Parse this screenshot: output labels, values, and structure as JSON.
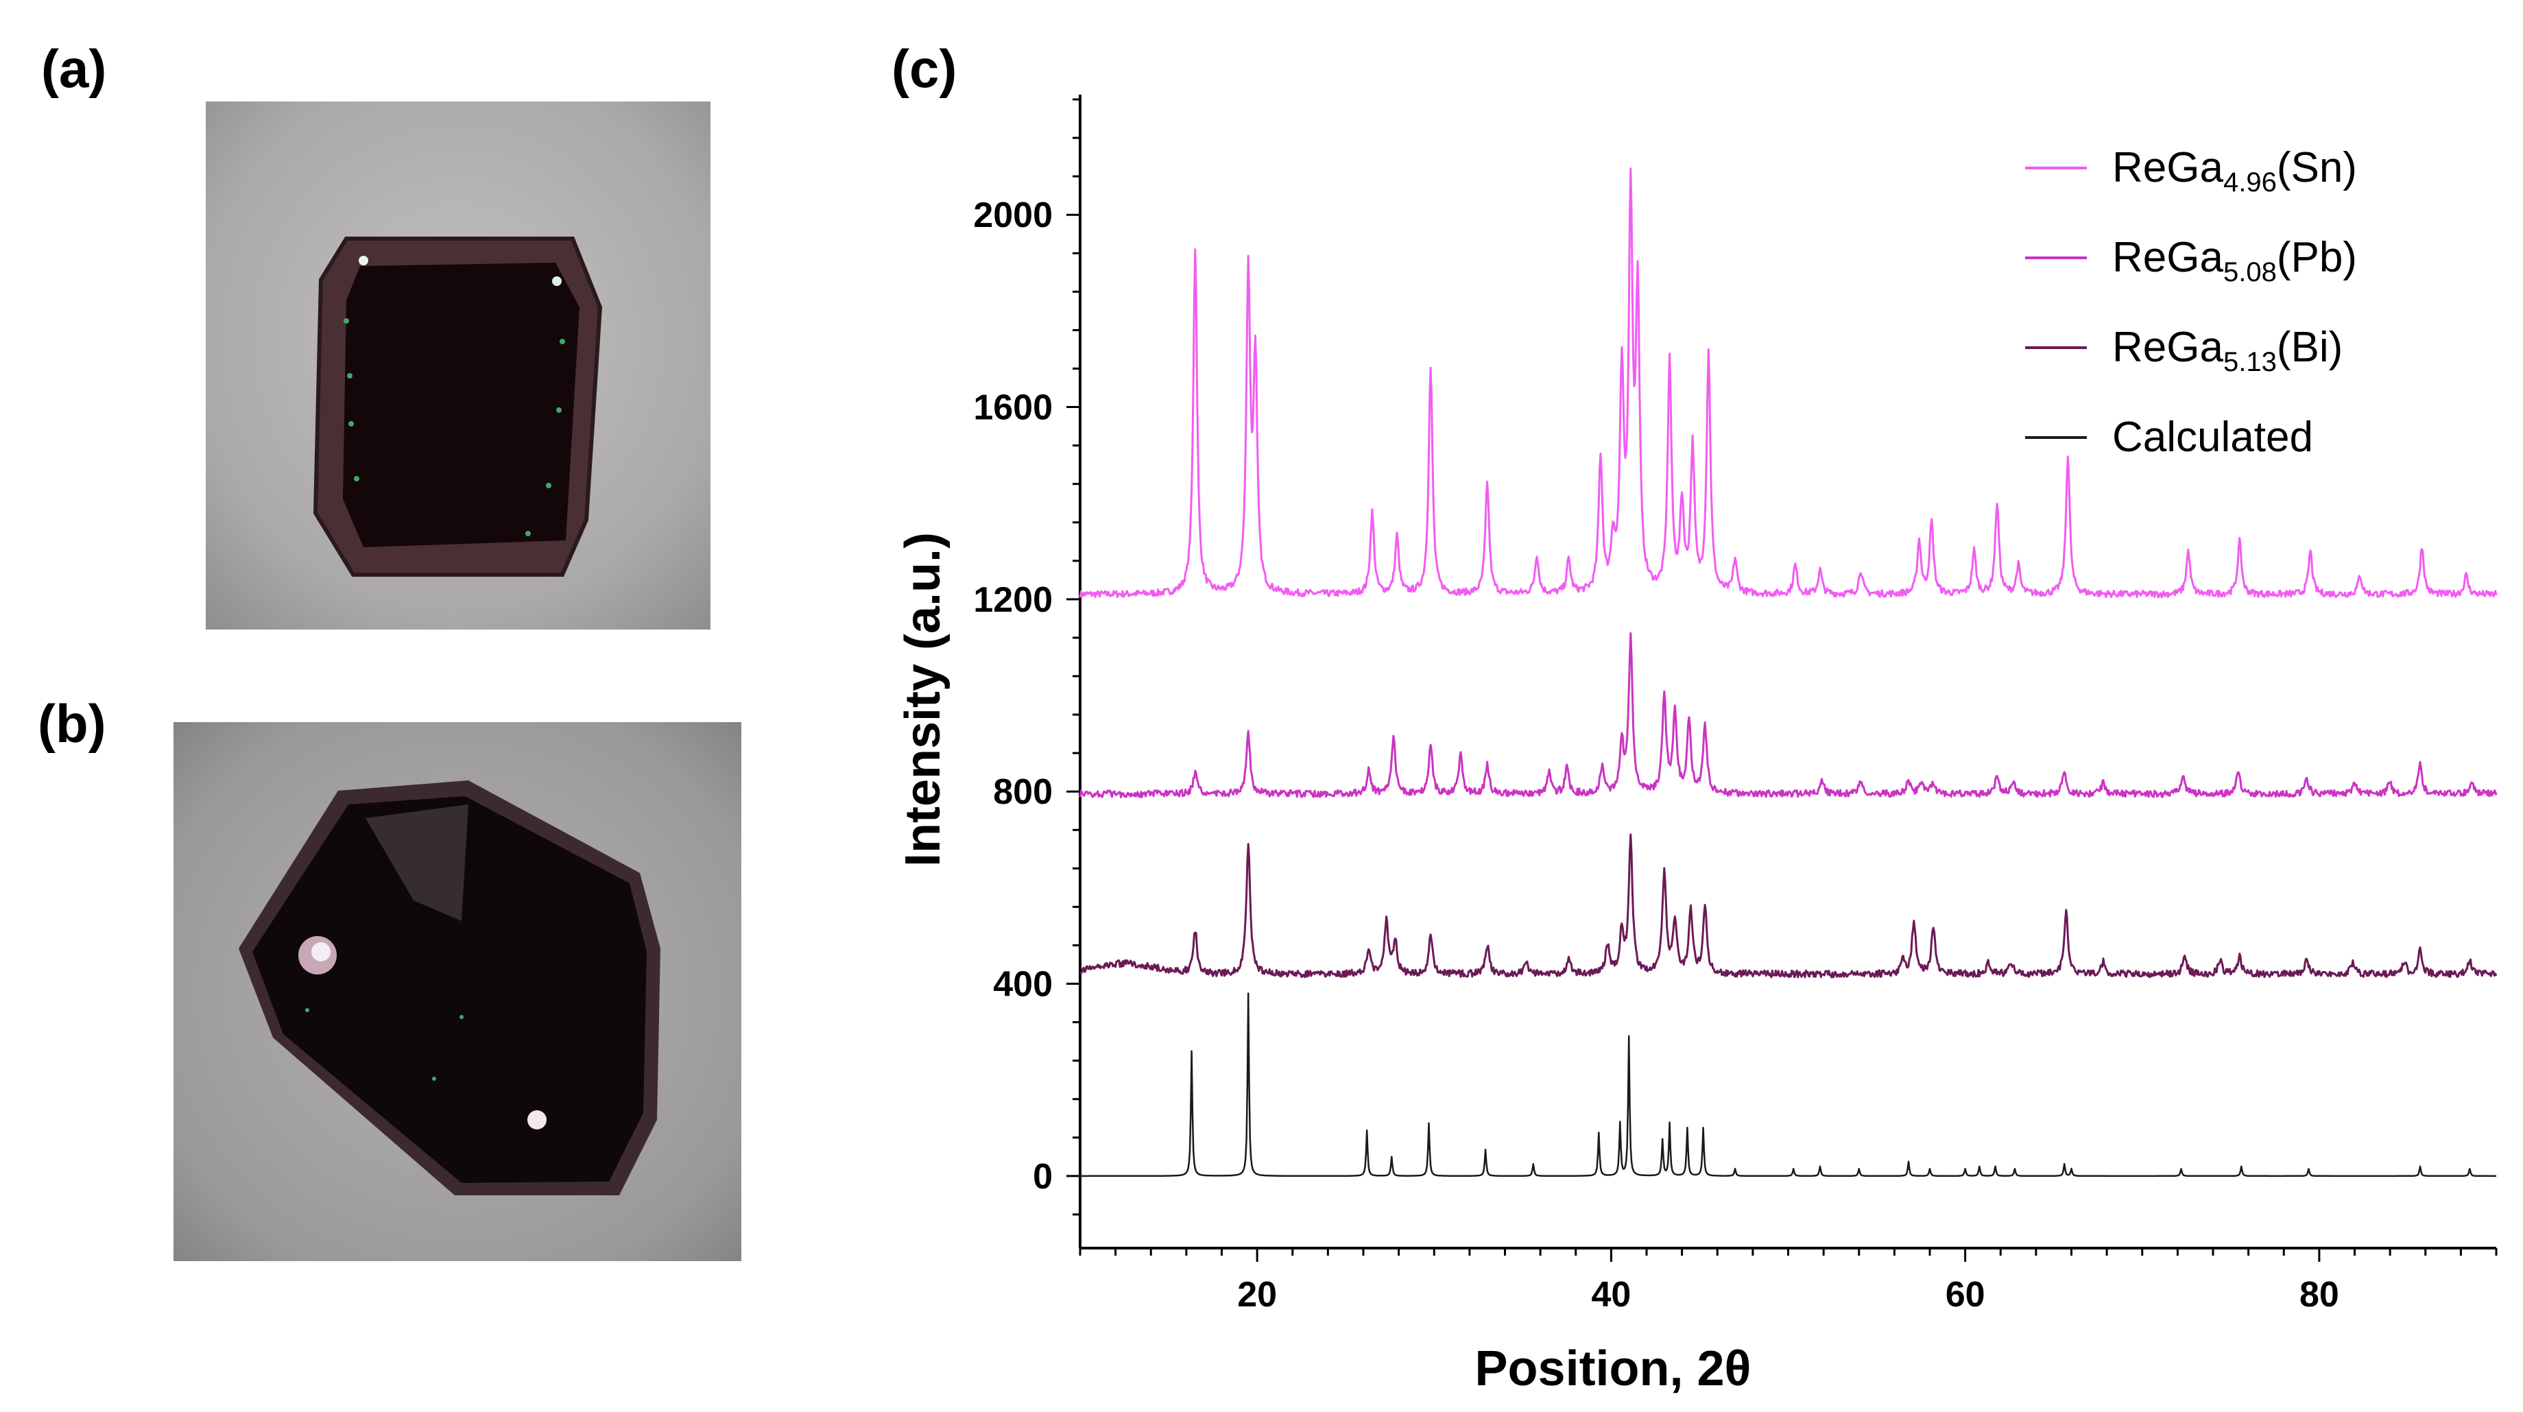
{
  "panels": {
    "a": "(a)",
    "b": "(b)",
    "c": "(c)"
  },
  "photos": {
    "a": {
      "background": "#a9a8a6",
      "crystal": "#1a0a0c",
      "rim": "#4a2f35"
    },
    "b": {
      "background": "#9a9a98",
      "crystal": "#120b0e",
      "rim": "#3c2a30"
    }
  },
  "chart_data": {
    "type": "line",
    "xlabel": "Position, 2θ",
    "ylabel": "Intensity (a.u.)",
    "xlim": [
      10,
      90
    ],
    "ylim": [
      -150,
      2250
    ],
    "xticks": [
      20,
      40,
      60,
      80
    ],
    "yticks": [
      0,
      400,
      800,
      1200,
      1600,
      2000
    ],
    "legend_position": "top-right",
    "series": [
      {
        "name": "ReGa4.96(Sn)",
        "legend_base": "ReGa",
        "legend_sub": "4.96",
        "legend_suffix": "(Sn)",
        "color": "#f25cf2",
        "baseline": 1210,
        "peaks": [
          [
            16.5,
            720
          ],
          [
            19.5,
            660
          ],
          [
            19.9,
            480
          ],
          [
            26.5,
            170
          ],
          [
            27.9,
            120
          ],
          [
            29.8,
            470
          ],
          [
            33.0,
            230
          ],
          [
            35.8,
            80
          ],
          [
            37.6,
            70
          ],
          [
            39.4,
            280
          ],
          [
            40.1,
            100
          ],
          [
            40.6,
            440
          ],
          [
            41.1,
            800
          ],
          [
            41.5,
            600
          ],
          [
            43.3,
            480
          ],
          [
            44.0,
            180
          ],
          [
            44.6,
            300
          ],
          [
            45.5,
            500
          ],
          [
            47.0,
            70
          ],
          [
            50.4,
            60
          ],
          [
            51.8,
            50
          ],
          [
            54.1,
            50
          ],
          [
            57.4,
            110
          ],
          [
            58.1,
            150
          ],
          [
            60.5,
            90
          ],
          [
            61.8,
            190
          ],
          [
            63.0,
            60
          ],
          [
            65.8,
            290
          ],
          [
            72.6,
            90
          ],
          [
            75.5,
            110
          ],
          [
            79.5,
            90
          ],
          [
            82.3,
            40
          ],
          [
            85.8,
            100
          ],
          [
            88.3,
            40
          ]
        ]
      },
      {
        "name": "ReGa5.08(Pb)",
        "legend_base": "ReGa",
        "legend_sub": "5.08",
        "legend_suffix": "(Pb)",
        "color": "#cc33c4",
        "baseline": 795,
        "peaks": [
          [
            16.5,
            45
          ],
          [
            19.5,
            125
          ],
          [
            26.3,
            50
          ],
          [
            27.7,
            120
          ],
          [
            29.8,
            100
          ],
          [
            31.5,
            80
          ],
          [
            33.0,
            60
          ],
          [
            36.5,
            45
          ],
          [
            37.5,
            55
          ],
          [
            39.5,
            60
          ],
          [
            40.6,
            100
          ],
          [
            41.1,
            320
          ],
          [
            43.0,
            200
          ],
          [
            43.6,
            170
          ],
          [
            44.4,
            150
          ],
          [
            45.3,
            140
          ],
          [
            51.9,
            30
          ],
          [
            54.1,
            25
          ],
          [
            56.8,
            25
          ],
          [
            57.5,
            25
          ],
          [
            58.2,
            25
          ],
          [
            61.8,
            40
          ],
          [
            62.7,
            25
          ],
          [
            65.6,
            50
          ],
          [
            67.8,
            25
          ],
          [
            72.3,
            40
          ],
          [
            75.4,
            50
          ],
          [
            79.3,
            30
          ],
          [
            82.0,
            25
          ],
          [
            84.0,
            25
          ],
          [
            85.7,
            60
          ],
          [
            88.6,
            30
          ]
        ]
      },
      {
        "name": "ReGa5.13(Bi)",
        "legend_base": "ReGa",
        "legend_sub": "5.13",
        "legend_suffix": "(Bi)",
        "color": "#6b1a56",
        "baseline": 420,
        "peaks": [
          [
            16.5,
            90
          ],
          [
            19.5,
            270
          ],
          [
            26.3,
            50
          ],
          [
            27.3,
            110
          ],
          [
            27.8,
            70
          ],
          [
            29.8,
            80
          ],
          [
            33.0,
            60
          ],
          [
            35.2,
            30
          ],
          [
            37.6,
            30
          ],
          [
            39.8,
            60
          ],
          [
            40.6,
            90
          ],
          [
            41.1,
            280
          ],
          [
            43.0,
            210
          ],
          [
            43.6,
            110
          ],
          [
            44.5,
            130
          ],
          [
            45.3,
            140
          ],
          [
            56.5,
            30
          ],
          [
            57.1,
            110
          ],
          [
            58.2,
            100
          ],
          [
            61.3,
            25
          ],
          [
            62.6,
            25
          ],
          [
            65.7,
            130
          ],
          [
            67.8,
            25
          ],
          [
            72.4,
            40
          ],
          [
            74.4,
            30
          ],
          [
            75.5,
            35
          ],
          [
            79.3,
            30
          ],
          [
            81.9,
            25
          ],
          [
            84.8,
            25
          ],
          [
            85.7,
            50
          ],
          [
            88.5,
            30
          ]
        ]
      },
      {
        "name": "Calculated",
        "legend_base": "Calculated",
        "legend_sub": "",
        "legend_suffix": "",
        "color": "#1a1a1a",
        "baseline": 0,
        "peaks": [
          [
            16.3,
            260
          ],
          [
            19.5,
            380
          ],
          [
            26.2,
            95
          ],
          [
            27.6,
            40
          ],
          [
            29.7,
            110
          ],
          [
            32.9,
            55
          ],
          [
            35.6,
            25
          ],
          [
            39.3,
            90
          ],
          [
            40.5,
            110
          ],
          [
            41.0,
            290
          ],
          [
            42.9,
            75
          ],
          [
            43.3,
            110
          ],
          [
            44.3,
            100
          ],
          [
            45.2,
            100
          ],
          [
            47.0,
            15
          ],
          [
            50.3,
            15
          ],
          [
            51.8,
            20
          ],
          [
            54.0,
            15
          ],
          [
            56.8,
            30
          ],
          [
            58.0,
            15
          ],
          [
            60.0,
            15
          ],
          [
            60.8,
            20
          ],
          [
            61.7,
            20
          ],
          [
            62.8,
            15
          ],
          [
            65.6,
            25
          ],
          [
            66.0,
            15
          ],
          [
            72.2,
            15
          ],
          [
            75.6,
            20
          ],
          [
            79.4,
            15
          ],
          [
            85.7,
            20
          ],
          [
            88.5,
            15
          ]
        ]
      }
    ]
  }
}
